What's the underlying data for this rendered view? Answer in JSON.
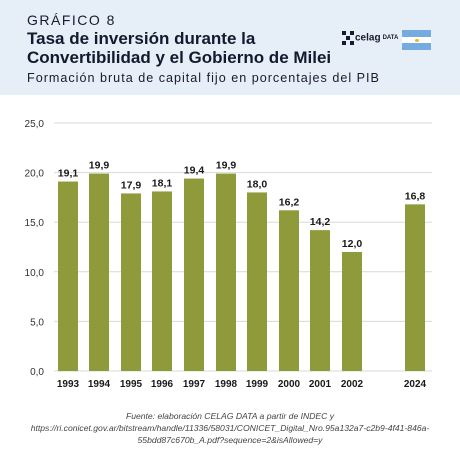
{
  "header": {
    "kicker": "GRÁFICO 8",
    "title": "Tasa de inversión durante la Convertibilidad y el Gobierno de Milei",
    "subtitle": "Formación bruta de capital fijo en porcentajes del PIB",
    "logo_text": "celag",
    "logo_sub": "DATA",
    "background": "#e6eef7"
  },
  "chart_data": {
    "type": "bar",
    "categories": [
      "1993",
      "1994",
      "1995",
      "1996",
      "1997",
      "1998",
      "1999",
      "2000",
      "2001",
      "2002",
      "2024"
    ],
    "values": [
      19.1,
      19.9,
      17.9,
      18.1,
      19.4,
      19.9,
      18.0,
      16.2,
      14.2,
      12.0,
      16.8
    ],
    "value_labels": [
      "19,1",
      "19,9",
      "17,9",
      "18,1",
      "19,4",
      "19,9",
      "18,0",
      "16,2",
      "14,2",
      "12,0",
      "16,8"
    ],
    "title": "",
    "xlabel": "",
    "ylabel": "",
    "ylim": [
      0,
      25
    ],
    "yticks": [
      "0,0",
      "5,0",
      "10,0",
      "15,0",
      "20,0",
      "25,0"
    ],
    "grid": true,
    "legend": "none",
    "bar_color": "#8f9a3a"
  },
  "source": {
    "line1": "Fuente: elaboración CELAG DATA a partir de INDEC y",
    "line2": "https://ri.conicet.gov.ar/bitstream/handle/11336/58031/CONICET_Digital_Nro.95a132a7-c2b9-4f41-846a-",
    "line3": "55bdd87c670b_A.pdf?sequence=2&isAllowed=y"
  }
}
